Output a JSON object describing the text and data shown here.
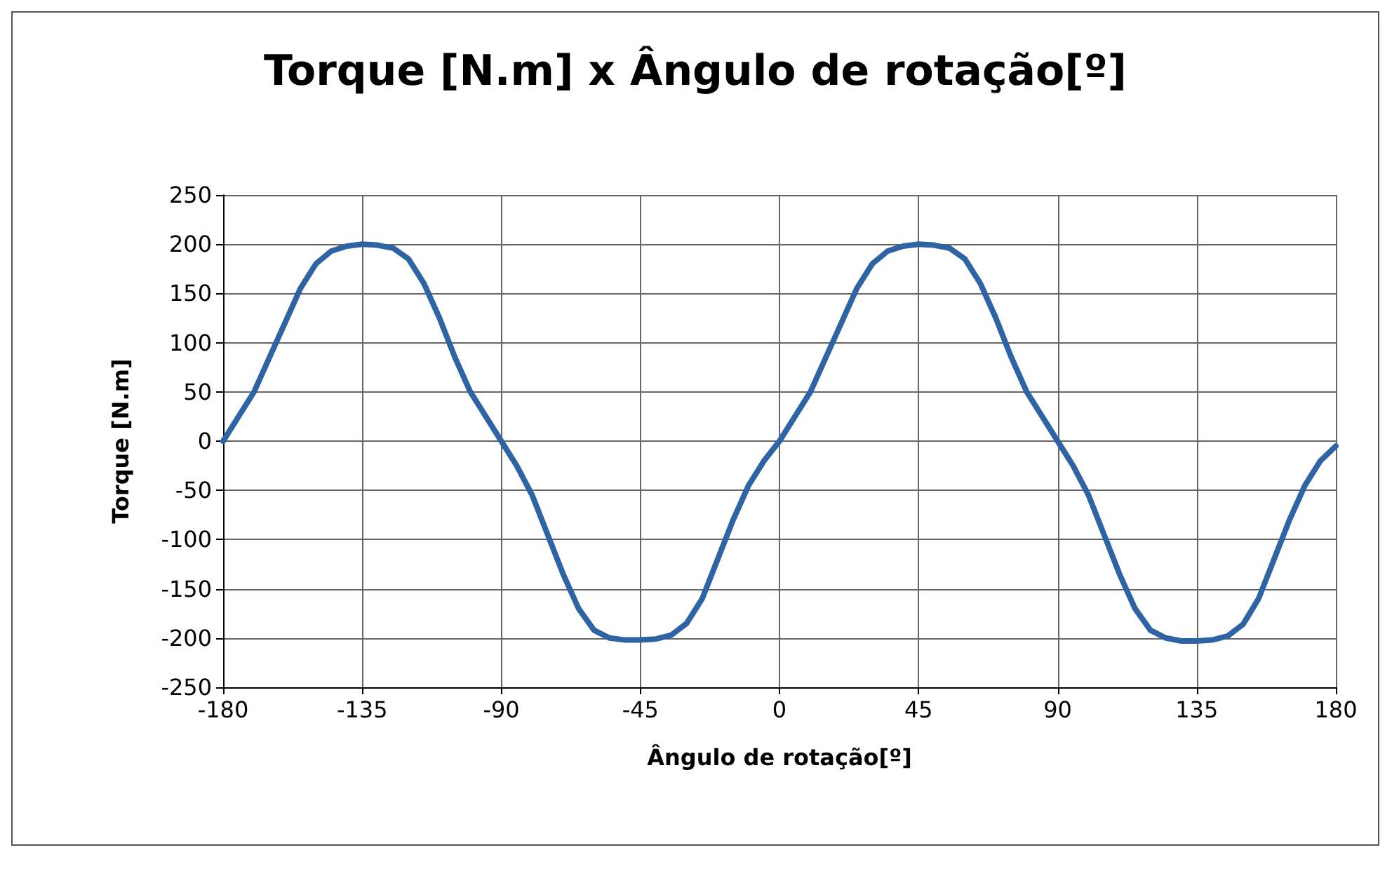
{
  "chart_data": {
    "type": "line",
    "title": "Torque [N.m] x Ângulo de rotação[º]",
    "xlabel": "Ângulo de rotação[º]",
    "ylabel": "Torque [N.m]",
    "x": [
      -180,
      -175,
      -170,
      -165,
      -160,
      -155,
      -150,
      -145,
      -140,
      -135,
      -130,
      -125,
      -120,
      -115,
      -110,
      -105,
      -100,
      -95,
      -90,
      -85,
      -80,
      -75,
      -70,
      -65,
      -60,
      -55,
      -50,
      -45,
      -40,
      -35,
      -30,
      -25,
      -20,
      -15,
      -10,
      -5,
      0,
      5,
      10,
      15,
      20,
      25,
      30,
      35,
      40,
      45,
      50,
      55,
      60,
      65,
      70,
      75,
      80,
      85,
      90,
      95,
      100,
      105,
      110,
      115,
      120,
      125,
      130,
      135,
      140,
      145,
      150,
      155,
      160,
      165,
      170,
      175,
      180
    ],
    "series": [
      {
        "color": "#2e64a4",
        "values": [
          0,
          25,
          50,
          85,
          120,
          155,
          180,
          193,
          198,
          200,
          199,
          196,
          185,
          160,
          125,
          85,
          50,
          25,
          0,
          -25,
          -55,
          -95,
          -135,
          -170,
          -192,
          -200,
          -202,
          -202,
          -201,
          -197,
          -185,
          -160,
          -120,
          -80,
          -45,
          -20,
          0,
          25,
          50,
          85,
          120,
          155,
          180,
          193,
          198,
          200,
          199,
          196,
          185,
          160,
          125,
          85,
          50,
          25,
          0,
          -25,
          -55,
          -95,
          -135,
          -170,
          -192,
          -200,
          -203,
          -203,
          -202,
          -198,
          -186,
          -160,
          -120,
          -80,
          -45,
          -20,
          -5
        ]
      }
    ],
    "xlim": [
      -180,
      180
    ],
    "xticks": [
      -180,
      -135,
      -90,
      -45,
      0,
      45,
      90,
      135,
      180
    ],
    "ylim": [
      -250,
      250
    ],
    "yticks": [
      -250,
      -200,
      -150,
      -100,
      -50,
      0,
      50,
      100,
      150,
      200,
      250
    ],
    "grid": true,
    "marker": "none",
    "line_style": "solid"
  }
}
